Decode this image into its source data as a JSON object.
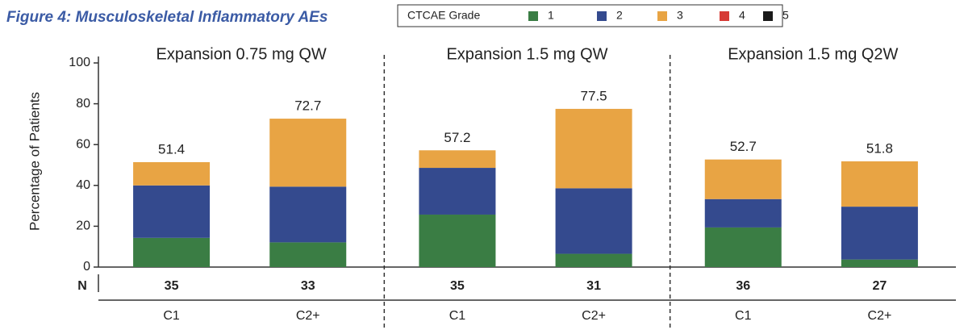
{
  "chart_data": {
    "type": "stacked_bar",
    "title": "Figure 4: Musculoskeletal Inflammatory AEs",
    "y_label": "Percentage of Patients",
    "legend_title": "CTCAE Grade",
    "groups": [
      "Expansion 0.75 mg QW",
      "Expansion 1.5 mg QW",
      "Expansion 1.5 mg Q2W"
    ],
    "categories": [
      "C1",
      "C2+",
      "C1",
      "C2+",
      "C1",
      "C2+"
    ],
    "n_label": "N",
    "n": [
      35,
      33,
      35,
      31,
      36,
      27
    ],
    "totals": [
      51.4,
      72.7,
      57.2,
      77.5,
      52.7,
      51.8
    ],
    "series": [
      {
        "name": "1",
        "color": "#3a7d44",
        "values": [
          14.3,
          12.1,
          25.7,
          6.5,
          19.4,
          3.7
        ]
      },
      {
        "name": "2",
        "color": "#344a8e",
        "values": [
          25.7,
          27.3,
          22.9,
          32.1,
          13.9,
          25.9
        ]
      },
      {
        "name": "3",
        "color": "#e8a444",
        "values": [
          11.4,
          33.3,
          8.6,
          38.9,
          19.4,
          22.2
        ]
      },
      {
        "name": "4",
        "color": "#d63a35",
        "values": [
          0,
          0,
          0,
          0,
          0,
          0
        ]
      },
      {
        "name": "5",
        "color": "#1a1a1a",
        "values": [
          0,
          0,
          0,
          0,
          0,
          0
        ]
      }
    ],
    "ylim": [
      0,
      100
    ],
    "yticks": [
      0,
      20,
      40,
      60,
      80,
      100
    ],
    "grid": false
  }
}
